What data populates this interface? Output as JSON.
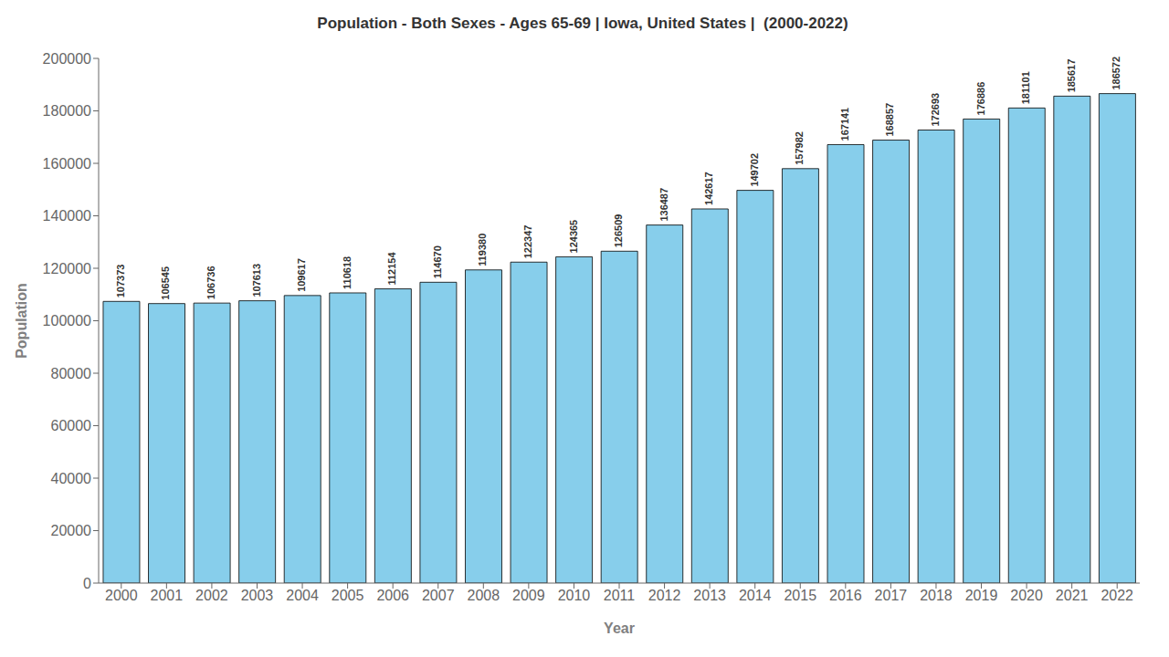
{
  "chart_data": {
    "type": "bar",
    "title": "Population - Both Sexes - Ages 65-69 | Iowa, United States |  (2000-2022)",
    "xlabel": "Year",
    "ylabel": "Population",
    "categories": [
      "2000",
      "2001",
      "2002",
      "2003",
      "2004",
      "2005",
      "2006",
      "2007",
      "2008",
      "2009",
      "2010",
      "2011",
      "2012",
      "2013",
      "2014",
      "2015",
      "2016",
      "2017",
      "2018",
      "2019",
      "2020",
      "2021",
      "2022"
    ],
    "values": [
      107373,
      106545,
      106736,
      107613,
      109617,
      110618,
      112154,
      114670,
      119380,
      122347,
      124365,
      126509,
      136487,
      142617,
      149702,
      157982,
      167141,
      168857,
      172693,
      176886,
      181101,
      185617,
      186572
    ],
    "color": "#87CEEB",
    "ylim": [
      0,
      200000
    ],
    "yticks": [
      0,
      20000,
      40000,
      60000,
      80000,
      100000,
      120000,
      140000,
      160000,
      180000,
      200000
    ],
    "grid": false,
    "data_labels": true
  }
}
